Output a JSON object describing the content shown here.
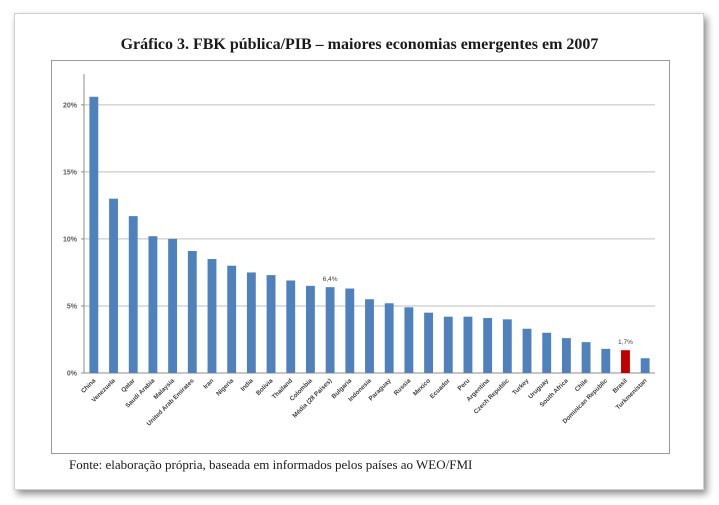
{
  "chart_data": {
    "type": "bar",
    "title": "Gráfico 3. FBK pública/PIB – maiores economias emergentes em 2007",
    "xlabel": "",
    "ylabel": "",
    "ylim": [
      0,
      22
    ],
    "yticks": [
      0,
      5,
      10,
      15,
      20
    ],
    "ytick_labels": [
      "0%",
      "5%",
      "10%",
      "15%",
      "20%"
    ],
    "grid": true,
    "legend": "none",
    "categories": [
      "China",
      "Venezuela",
      "Qatar",
      "Saudi Arabia",
      "Malaysia",
      "United Arab Emirates",
      "Iran",
      "Nigeria",
      "India",
      "Bolivia",
      "Thailand",
      "Colombia",
      "Média (28 Países)",
      "Bulgaria",
      "Indonesia",
      "Paraguay",
      "Russia",
      "Mexico",
      "Ecuador",
      "Peru",
      "Argentina",
      "Czech Republic",
      "Turkey",
      "Uruguay",
      "South Africa",
      "Chile",
      "Dominican Republic",
      "Brasil",
      "Turkmenistan"
    ],
    "values": [
      20.6,
      13.0,
      11.7,
      10.2,
      10.0,
      9.1,
      8.5,
      8.0,
      7.5,
      7.3,
      6.9,
      6.5,
      6.4,
      6.3,
      5.5,
      5.2,
      4.9,
      4.5,
      4.2,
      4.2,
      4.1,
      4.0,
      3.3,
      3.0,
      2.6,
      2.3,
      1.8,
      1.7,
      1.1
    ],
    "data_labels": [
      {
        "category": "Média (28 Países)",
        "text": "6,4%"
      },
      {
        "category": "Brasil",
        "text": "1,7%"
      }
    ],
    "colors": {
      "bar": "#4f81bd",
      "highlight": "#c00000",
      "highlight_category": "Brasil",
      "grid": "#bfbfbf",
      "text": "#1a1a1a"
    }
  },
  "source_note": "Fonte: elaboração própria, baseada em informados pelos países ao WEO/FMI"
}
